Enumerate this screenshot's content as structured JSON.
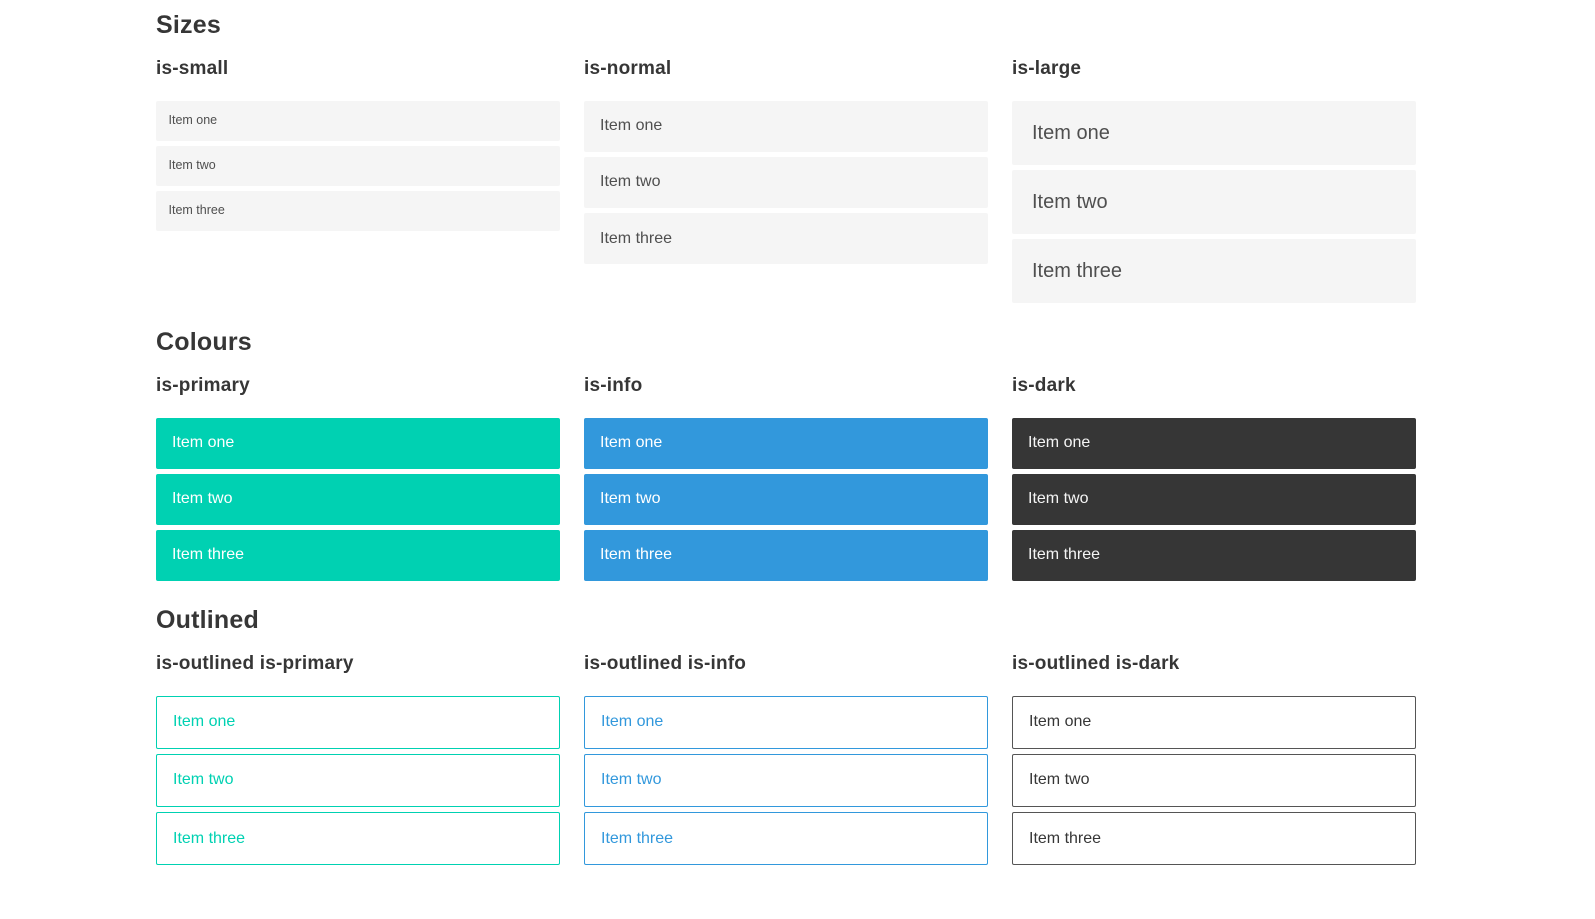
{
  "colors": {
    "primary": "#00d1b2",
    "info": "#3298dc",
    "dark": "#363636",
    "light_item_background": "#f5f5f5",
    "heading_text": "#363636",
    "light_item_text": "#4f4f4f",
    "page_background": "#ffffff"
  },
  "sections": [
    {
      "title": "Sizes",
      "groups": [
        {
          "label": "is-small",
          "items": [
            "Item one",
            "Item two",
            "Item three"
          ]
        },
        {
          "label": "is-normal",
          "items": [
            "Item one",
            "Item two",
            "Item three"
          ]
        },
        {
          "label": "is-large",
          "items": [
            "Item one",
            "Item two",
            "Item three"
          ]
        }
      ]
    },
    {
      "title": "Colours",
      "groups": [
        {
          "label": "is-primary",
          "items": [
            "Item one",
            "Item two",
            "Item three"
          ]
        },
        {
          "label": "is-info",
          "items": [
            "Item one",
            "Item two",
            "Item three"
          ]
        },
        {
          "label": "is-dark",
          "items": [
            "Item one",
            "Item two",
            "Item three"
          ]
        }
      ]
    },
    {
      "title": "Outlined",
      "groups": [
        {
          "label": "is-outlined is-primary",
          "items": [
            "Item one",
            "Item two",
            "Item three"
          ]
        },
        {
          "label": "is-outlined is-info",
          "items": [
            "Item one",
            "Item two",
            "Item three"
          ]
        },
        {
          "label": "is-outlined is-dark",
          "items": [
            "Item one",
            "Item two",
            "Item three"
          ]
        }
      ]
    }
  ]
}
